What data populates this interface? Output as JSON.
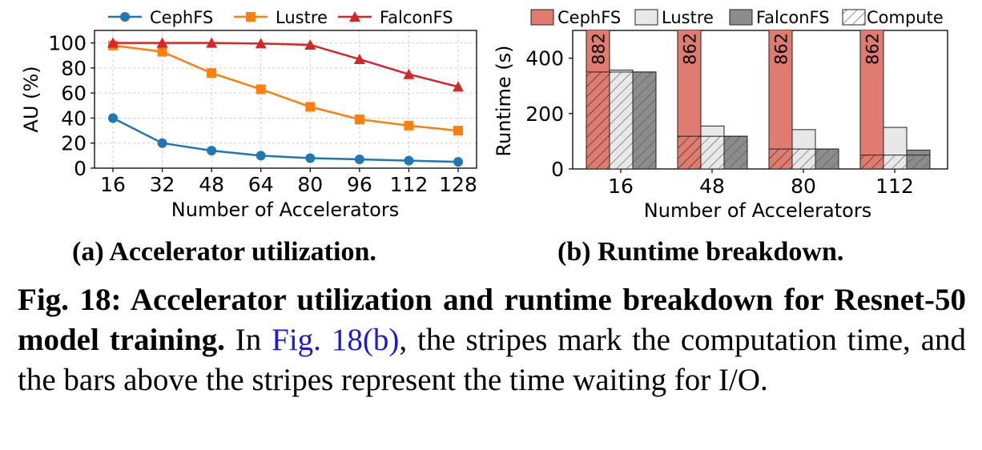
{
  "chart_data": [
    {
      "type": "line",
      "xlabel": "Number of Accelerators",
      "ylabel": "AU (%)",
      "x": [
        16,
        32,
        48,
        64,
        80,
        96,
        112,
        128
      ],
      "x_tick_labels": [
        "16",
        "32",
        "48",
        "64",
        "80",
        "96",
        "112",
        "128"
      ],
      "ylim": [
        0,
        110
      ],
      "y_ticks": [
        0,
        20,
        40,
        60,
        80,
        100
      ],
      "y_tick_labels": [
        "0",
        "20",
        "40",
        "60",
        "80",
        "100"
      ],
      "grid": true,
      "legend_position": "top",
      "series": [
        {
          "name": "CephFS",
          "color": "#1f77b4",
          "marker": "circle",
          "values": [
            40,
            20,
            14,
            10,
            8,
            7,
            6,
            5
          ]
        },
        {
          "name": "Lustre",
          "color": "#ff7f0e",
          "marker": "square",
          "values": [
            98,
            93,
            76,
            63,
            49,
            39,
            34,
            30
          ]
        },
        {
          "name": "FalconFS",
          "color": "#d62728",
          "marker": "triangle",
          "values": [
            100,
            100,
            100,
            99.5,
            98.5,
            87,
            75,
            65
          ]
        }
      ]
    },
    {
      "type": "bar",
      "xlabel": "Number of Accelerators",
      "ylabel": "Runtime (s)",
      "categories": [
        "16",
        "48",
        "80",
        "112"
      ],
      "ylim": [
        0,
        500
      ],
      "y_ticks": [
        0,
        200,
        400
      ],
      "y_tick_labels": [
        "0",
        "200",
        "400"
      ],
      "legend_position": "top",
      "series": [
        {
          "name": "CephFS",
          "color": "#e07b6f",
          "values": [
            882,
            862,
            862,
            862
          ],
          "compute": [
            350,
            118,
            72,
            50
          ]
        },
        {
          "name": "Lustre",
          "color": "#e8e8e8",
          "values": [
            357,
            155,
            142,
            150
          ],
          "compute": [
            350,
            118,
            72,
            50
          ]
        },
        {
          "name": "FalconFS",
          "color": "#8c8c8c",
          "values": [
            350,
            118,
            72,
            68
          ],
          "compute": [
            350,
            118,
            72,
            50
          ]
        }
      ],
      "compute_legend": "Compute",
      "annotations": [
        "882",
        "862",
        "862",
        "862"
      ]
    }
  ],
  "subcaptions": {
    "a": "(a) Accelerator utilization.",
    "b": "(b) Runtime breakdown."
  },
  "caption": {
    "label": "Fig. 18: Accelerator utilization and runtime breakdown for Resnet-50 model training.",
    "text_before": " In ",
    "link": "Fig. 18(b)",
    "text_after": ", the stripes mark the computation time, and the bars above the stripes represent the time waiting for I/O."
  }
}
